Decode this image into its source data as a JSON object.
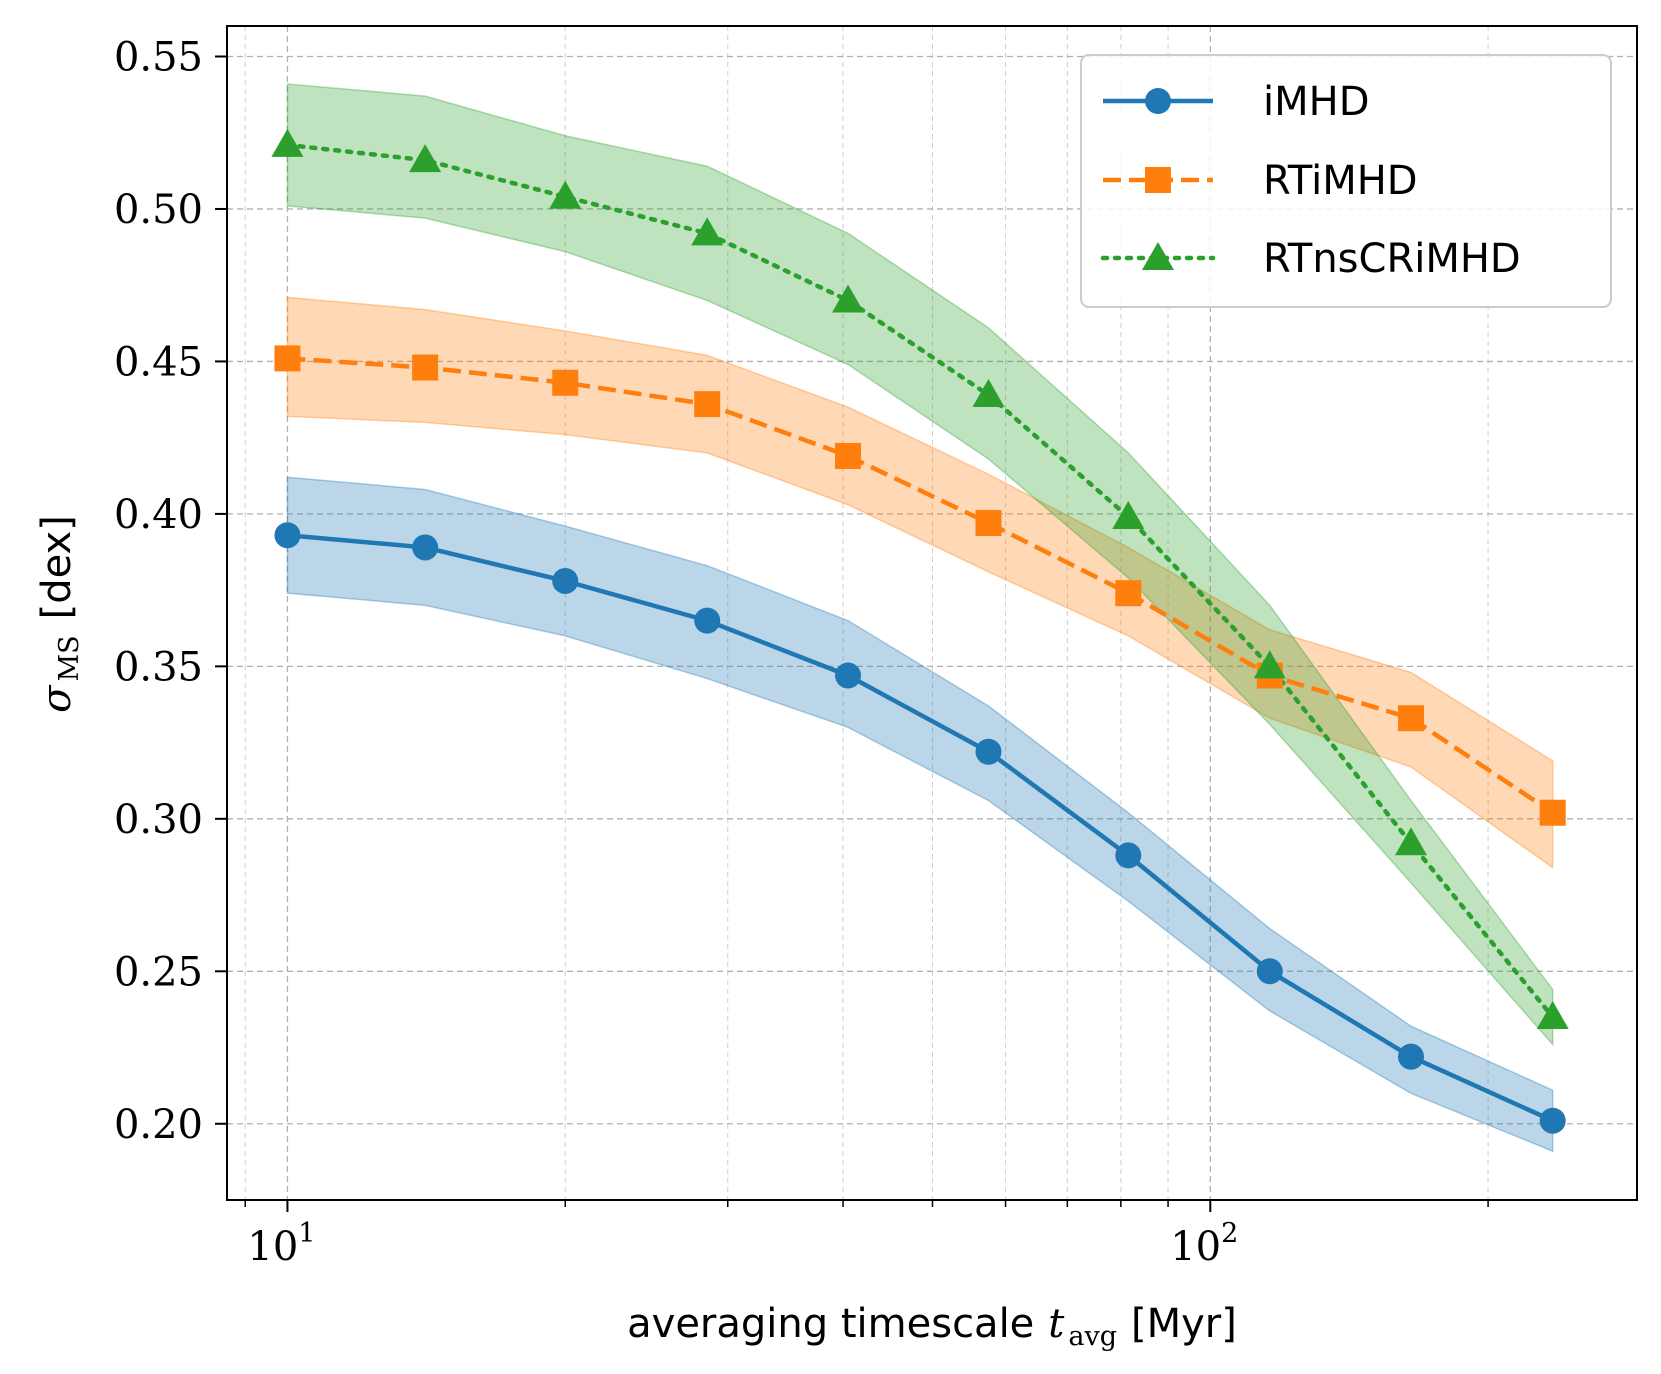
{
  "chart_data": {
    "type": "line",
    "xscale": "log",
    "xlim": [
      8.6,
      290
    ],
    "ylim": [
      0.175,
      0.56
    ],
    "xlabel": "averaging timescale",
    "xlabel_math": "t",
    "xlabel_math_sub": "avg",
    "xlabel_unit": "[Myr]",
    "ylabel_math": "σ",
    "ylabel_math_sub": "MS",
    "ylabel_unit": "[dex]",
    "yticks": [
      0.2,
      0.25,
      0.3,
      0.35,
      0.4,
      0.45,
      0.5,
      0.55
    ],
    "ytick_labels": [
      "0.20",
      "0.25",
      "0.30",
      "0.35",
      "0.40",
      "0.45",
      "0.50",
      "0.55"
    ],
    "xticks": [
      10,
      100
    ],
    "xtick_base": "10",
    "xtick_exponents": [
      "1",
      "2"
    ],
    "grid": true,
    "legend_position": "top-right",
    "x": [
      10,
      14.1,
      20,
      28.5,
      40.5,
      57.5,
      81.5,
      116,
      165,
      235
    ],
    "series": [
      {
        "name": "iMHD",
        "color": "#1f77b4",
        "linestyle": "solid",
        "marker": "circle",
        "values": [
          0.393,
          0.389,
          0.378,
          0.365,
          0.347,
          0.322,
          0.288,
          0.25,
          0.222,
          0.201
        ],
        "band_upper": [
          0.412,
          0.408,
          0.396,
          0.383,
          0.365,
          0.337,
          0.302,
          0.264,
          0.232,
          0.211
        ],
        "band_lower": [
          0.374,
          0.37,
          0.36,
          0.346,
          0.33,
          0.306,
          0.273,
          0.237,
          0.21,
          0.191
        ]
      },
      {
        "name": "RTiMHD",
        "color": "#ff7f0e",
        "linestyle": "dashed",
        "marker": "square",
        "values": [
          0.451,
          0.448,
          0.443,
          0.436,
          0.419,
          0.397,
          0.374,
          0.347,
          0.333,
          0.302
        ],
        "band_upper": [
          0.471,
          0.467,
          0.46,
          0.452,
          0.435,
          0.413,
          0.389,
          0.362,
          0.348,
          0.319
        ],
        "band_lower": [
          0.432,
          0.43,
          0.426,
          0.42,
          0.403,
          0.381,
          0.36,
          0.333,
          0.317,
          0.284
        ]
      },
      {
        "name": "RTnsCRiMHD",
        "color": "#2ca02c",
        "linestyle": "dotted",
        "marker": "triangle",
        "values": [
          0.521,
          0.516,
          0.504,
          0.492,
          0.47,
          0.439,
          0.399,
          0.35,
          0.292,
          0.235
        ],
        "band_upper": [
          0.541,
          0.537,
          0.524,
          0.514,
          0.492,
          0.461,
          0.42,
          0.37,
          0.306,
          0.244
        ],
        "band_lower": [
          0.501,
          0.497,
          0.486,
          0.47,
          0.449,
          0.418,
          0.379,
          0.331,
          0.279,
          0.226
        ]
      }
    ]
  }
}
